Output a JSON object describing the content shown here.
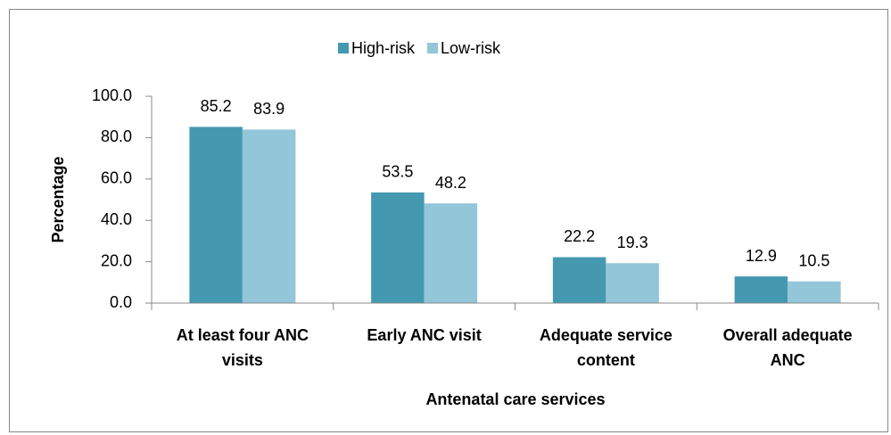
{
  "chart_data": {
    "type": "bar",
    "categories": [
      [
        "At least four ANC",
        "visits"
      ],
      [
        "Early ANC visit"
      ],
      [
        "Adequate service",
        "content"
      ],
      [
        "Overall adequate",
        "ANC"
      ]
    ],
    "series": [
      {
        "name": "High-risk",
        "color": "#4499b0",
        "values": [
          85.2,
          53.5,
          22.2,
          12.9
        ]
      },
      {
        "name": "Low-risk",
        "color": "#93c6d8",
        "values": [
          83.9,
          48.2,
          19.3,
          10.5
        ]
      }
    ],
    "ylabel": "Percentage",
    "xlabel": "Antenatal care services",
    "ylim": [
      0,
      100
    ],
    "yticks": [
      {
        "value": 0,
        "label": "0.0"
      },
      {
        "value": 20,
        "label": "20.0"
      },
      {
        "value": 40,
        "label": "40.0"
      },
      {
        "value": 60,
        "label": "60.0"
      },
      {
        "value": 80,
        "label": "80.0"
      },
      {
        "value": 100,
        "label": "100.0"
      }
    ],
    "legend": "top"
  }
}
